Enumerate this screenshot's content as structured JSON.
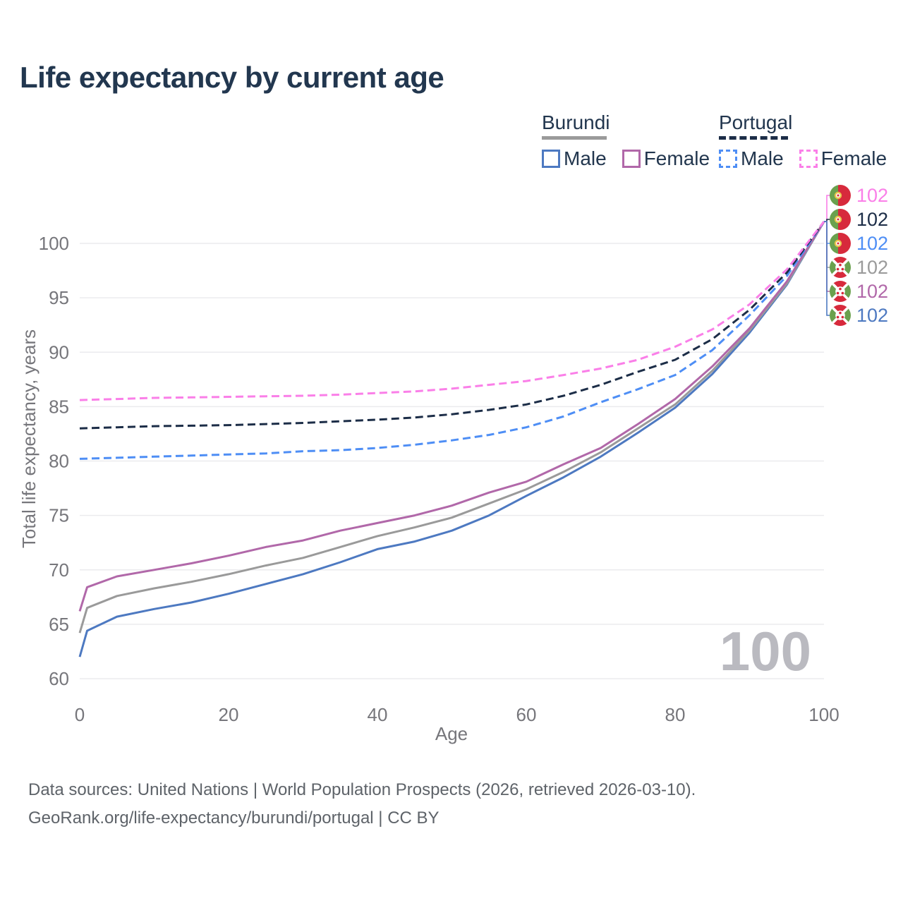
{
  "title": "Life expectancy by current age",
  "legend": {
    "groups": [
      {
        "label": "Burundi",
        "line_style": "solid",
        "line_color": "#9a9a9a",
        "items": [
          {
            "label": "Male",
            "style": "solid",
            "color": "#4d79c1"
          },
          {
            "label": "Female",
            "style": "solid",
            "color": "#b168a9"
          }
        ]
      },
      {
        "label": "Portugal",
        "line_style": "dashed",
        "line_color": "#1c2d47",
        "items": [
          {
            "label": "Male",
            "style": "dashed",
            "color": "#4e8ef5"
          },
          {
            "label": "Female",
            "style": "dashed",
            "color": "#fa7fe8"
          }
        ]
      }
    ]
  },
  "chart_data": {
    "type": "line",
    "title": "Life expectancy by current age",
    "xlabel": "Age",
    "ylabel": "Total life expectancy, years",
    "xlim": [
      0,
      100
    ],
    "ylim": [
      60,
      103.6
    ],
    "xticks": [
      0,
      20,
      40,
      60,
      80,
      100
    ],
    "yticks": [
      60,
      65,
      70,
      75,
      80,
      85,
      90,
      95,
      100
    ],
    "grid": "horizontal",
    "hover_age_watermark": "100",
    "series": [
      {
        "name": "Burundi Male",
        "country": "Burundi",
        "sex": "Male",
        "style": "solid",
        "color": "#4d79c1",
        "end_label": "102",
        "x": [
          0,
          1,
          5,
          10,
          15,
          20,
          25,
          30,
          35,
          40,
          45,
          50,
          55,
          60,
          65,
          70,
          75,
          80,
          85,
          90,
          95,
          100
        ],
        "y": [
          62.0,
          64.4,
          65.7,
          66.4,
          67.0,
          67.8,
          68.7,
          69.6,
          70.7,
          71.9,
          72.6,
          73.6,
          75.0,
          76.8,
          78.5,
          80.4,
          82.6,
          84.9,
          88.0,
          91.8,
          96.2,
          102
        ]
      },
      {
        "name": "Burundi Both sexes",
        "country": "Burundi",
        "sex": "Both sexes",
        "style": "solid",
        "color": "#9a9a9a",
        "end_label": "102",
        "x": [
          0,
          1,
          5,
          10,
          15,
          20,
          25,
          30,
          35,
          40,
          45,
          50,
          55,
          60,
          65,
          70,
          75,
          80,
          85,
          90,
          95,
          100
        ],
        "y": [
          64.2,
          66.5,
          67.6,
          68.3,
          68.9,
          69.6,
          70.4,
          71.1,
          72.1,
          73.1,
          73.9,
          74.8,
          76.1,
          77.4,
          79.0,
          80.8,
          83.0,
          85.2,
          88.3,
          92.0,
          96.3,
          102
        ]
      },
      {
        "name": "Burundi Female",
        "country": "Burundi",
        "sex": "Female",
        "style": "solid",
        "color": "#b168a9",
        "end_label": "102",
        "x": [
          0,
          1,
          5,
          10,
          15,
          20,
          25,
          30,
          35,
          40,
          45,
          50,
          55,
          60,
          65,
          70,
          75,
          80,
          85,
          90,
          95,
          100
        ],
        "y": [
          66.2,
          68.4,
          69.4,
          70.0,
          70.6,
          71.3,
          72.1,
          72.7,
          73.6,
          74.3,
          75.0,
          75.9,
          77.1,
          78.1,
          79.7,
          81.2,
          83.4,
          85.7,
          88.7,
          92.2,
          96.5,
          102
        ]
      },
      {
        "name": "Portugal Male",
        "country": "Portugal",
        "sex": "Male",
        "style": "dashed",
        "color": "#4e8ef5",
        "end_label": "102",
        "x": [
          0,
          5,
          10,
          15,
          20,
          25,
          30,
          35,
          40,
          45,
          50,
          55,
          60,
          65,
          70,
          75,
          80,
          85,
          90,
          95,
          100
        ],
        "y": [
          80.2,
          80.3,
          80.4,
          80.5,
          80.6,
          80.7,
          80.9,
          81.0,
          81.2,
          81.5,
          81.9,
          82.4,
          83.1,
          84.1,
          85.4,
          86.6,
          87.9,
          90.2,
          93.4,
          97.0,
          102
        ]
      },
      {
        "name": "Portugal Both sexes",
        "country": "Portugal",
        "sex": "Both sexes",
        "style": "dashed",
        "color": "#1c2d47",
        "end_label": "102",
        "x": [
          0,
          5,
          10,
          15,
          20,
          25,
          30,
          35,
          40,
          45,
          50,
          55,
          60,
          65,
          70,
          75,
          80,
          85,
          90,
          95,
          100
        ],
        "y": [
          83.0,
          83.1,
          83.2,
          83.25,
          83.3,
          83.4,
          83.5,
          83.65,
          83.8,
          84.0,
          84.3,
          84.7,
          85.2,
          86.0,
          87.0,
          88.2,
          89.3,
          91.2,
          93.9,
          97.3,
          102
        ]
      },
      {
        "name": "Portugal Female",
        "country": "Portugal",
        "sex": "Female",
        "style": "dashed",
        "color": "#fa7fe8",
        "end_label": "102",
        "x": [
          0,
          5,
          10,
          15,
          20,
          25,
          30,
          35,
          40,
          45,
          50,
          55,
          60,
          65,
          70,
          75,
          80,
          85,
          90,
          95,
          100
        ],
        "y": [
          85.6,
          85.7,
          85.8,
          85.85,
          85.9,
          85.95,
          86.0,
          86.1,
          86.25,
          86.4,
          86.65,
          87.0,
          87.35,
          87.9,
          88.5,
          89.3,
          90.5,
          92.1,
          94.4,
          97.6,
          102
        ]
      }
    ]
  },
  "end_labels": [
    {
      "value": "102",
      "series": "Portugal Female",
      "flag": "portugal",
      "color": "#fa7fe8"
    },
    {
      "value": "102",
      "series": "Portugal Both sexes",
      "flag": "portugal",
      "color": "#1c2d47"
    },
    {
      "value": "102",
      "series": "Portugal Male",
      "flag": "portugal",
      "color": "#4e8ef5"
    },
    {
      "value": "102",
      "series": "Burundi Both sexes",
      "flag": "burundi",
      "color": "#9a9a9a"
    },
    {
      "value": "102",
      "series": "Burundi Female",
      "flag": "burundi",
      "color": "#b168a9"
    },
    {
      "value": "102",
      "series": "Burundi Male",
      "flag": "burundi",
      "color": "#4d79c1"
    }
  ],
  "footer": {
    "line1": "Data sources: United Nations | World Population Prospects (2026, retrieved 2026-03-10).",
    "line2": "GeoRank.org/life-expectancy/burundi/portugal | CC BY"
  }
}
